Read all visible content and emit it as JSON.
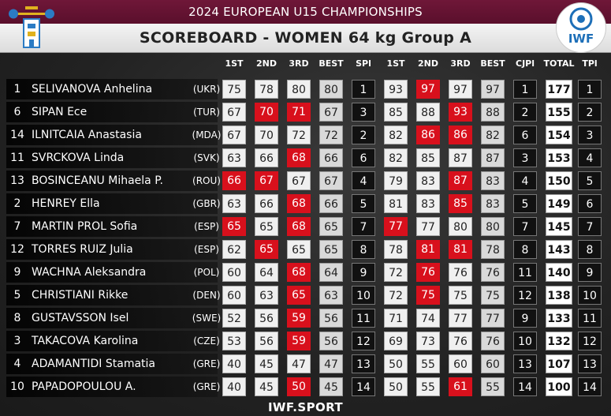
{
  "header": {
    "championship": "2024 EUROPEAN U15 CHAMPIONSHIPS",
    "title": "SCOREBOARD - WOMEN 64 kg Group A",
    "federation_logo_text": "IWF"
  },
  "columns": [
    "1ST",
    "2ND",
    "3RD",
    "BEST",
    "SPl",
    "1ST",
    "2ND",
    "3RD",
    "BEST",
    "CJPl",
    "TOTAL",
    "TPl"
  ],
  "athletes": [
    {
      "lot": "1",
      "name": "SELIVANOVA Anhelina",
      "nation": "(UKR)",
      "sn": [
        [
          "75",
          "g"
        ],
        [
          "78",
          "g"
        ],
        [
          "80",
          "g"
        ]
      ],
      "sn_best": "80",
      "sn_pl": "1",
      "cj": [
        [
          "93",
          "g"
        ],
        [
          "97",
          "b"
        ],
        [
          "97",
          "g"
        ]
      ],
      "cj_best": "97",
      "cj_pl": "1",
      "total": "177",
      "t_pl": "1"
    },
    {
      "lot": "6",
      "name": "SIPAN Ece",
      "nation": "(TUR)",
      "sn": [
        [
          "67",
          "g"
        ],
        [
          "70",
          "b"
        ],
        [
          "71",
          "b"
        ]
      ],
      "sn_best": "67",
      "sn_pl": "3",
      "cj": [
        [
          "85",
          "g"
        ],
        [
          "88",
          "g"
        ],
        [
          "93",
          "b"
        ]
      ],
      "cj_best": "88",
      "cj_pl": "2",
      "total": "155",
      "t_pl": "2"
    },
    {
      "lot": "14",
      "name": "ILNITCAIA Anastasia",
      "nation": "(MDA)",
      "sn": [
        [
          "67",
          "g"
        ],
        [
          "70",
          "g"
        ],
        [
          "72",
          "g"
        ]
      ],
      "sn_best": "72",
      "sn_pl": "2",
      "cj": [
        [
          "82",
          "g"
        ],
        [
          "86",
          "b"
        ],
        [
          "86",
          "b"
        ]
      ],
      "cj_best": "82",
      "cj_pl": "6",
      "total": "154",
      "t_pl": "3"
    },
    {
      "lot": "11",
      "name": "SVRCKOVA Linda",
      "nation": "(SVK)",
      "sn": [
        [
          "63",
          "g"
        ],
        [
          "66",
          "g"
        ],
        [
          "68",
          "b"
        ]
      ],
      "sn_best": "66",
      "sn_pl": "6",
      "cj": [
        [
          "82",
          "g"
        ],
        [
          "85",
          "g"
        ],
        [
          "87",
          "g"
        ]
      ],
      "cj_best": "87",
      "cj_pl": "3",
      "total": "153",
      "t_pl": "4"
    },
    {
      "lot": "13",
      "name": "BOSINCEANU Mihaela P.",
      "nation": "(ROU)",
      "sn": [
        [
          "66",
          "b"
        ],
        [
          "67",
          "b"
        ],
        [
          "67",
          "g"
        ]
      ],
      "sn_best": "67",
      "sn_pl": "4",
      "cj": [
        [
          "79",
          "g"
        ],
        [
          "83",
          "g"
        ],
        [
          "87",
          "b"
        ]
      ],
      "cj_best": "83",
      "cj_pl": "4",
      "total": "150",
      "t_pl": "5"
    },
    {
      "lot": "2",
      "name": "HENREY Ella",
      "nation": "(GBR)",
      "sn": [
        [
          "63",
          "g"
        ],
        [
          "66",
          "g"
        ],
        [
          "68",
          "b"
        ]
      ],
      "sn_best": "66",
      "sn_pl": "5",
      "cj": [
        [
          "81",
          "g"
        ],
        [
          "83",
          "g"
        ],
        [
          "85",
          "b"
        ]
      ],
      "cj_best": "83",
      "cj_pl": "5",
      "total": "149",
      "t_pl": "6"
    },
    {
      "lot": "7",
      "name": "MARTIN PROL Sofia",
      "nation": "(ESP)",
      "sn": [
        [
          "65",
          "b"
        ],
        [
          "65",
          "g"
        ],
        [
          "68",
          "b"
        ]
      ],
      "sn_best": "65",
      "sn_pl": "7",
      "cj": [
        [
          "77",
          "b"
        ],
        [
          "77",
          "g"
        ],
        [
          "80",
          "g"
        ]
      ],
      "cj_best": "80",
      "cj_pl": "7",
      "total": "145",
      "t_pl": "7"
    },
    {
      "lot": "12",
      "name": "TORRES RUIZ Julia",
      "nation": "(ESP)",
      "sn": [
        [
          "62",
          "g"
        ],
        [
          "65",
          "b"
        ],
        [
          "65",
          "g"
        ]
      ],
      "sn_best": "65",
      "sn_pl": "8",
      "cj": [
        [
          "78",
          "g"
        ],
        [
          "81",
          "b"
        ],
        [
          "81",
          "b"
        ]
      ],
      "cj_best": "78",
      "cj_pl": "8",
      "total": "143",
      "t_pl": "8"
    },
    {
      "lot": "9",
      "name": "WACHNA Aleksandra",
      "nation": "(POL)",
      "sn": [
        [
          "60",
          "g"
        ],
        [
          "64",
          "g"
        ],
        [
          "68",
          "b"
        ]
      ],
      "sn_best": "64",
      "sn_pl": "9",
      "cj": [
        [
          "72",
          "g"
        ],
        [
          "76",
          "b"
        ],
        [
          "76",
          "g"
        ]
      ],
      "cj_best": "76",
      "cj_pl": "11",
      "total": "140",
      "t_pl": "9"
    },
    {
      "lot": "5",
      "name": "CHRISTIANI Rikke",
      "nation": "(DEN)",
      "sn": [
        [
          "60",
          "g"
        ],
        [
          "63",
          "g"
        ],
        [
          "65",
          "b"
        ]
      ],
      "sn_best": "63",
      "sn_pl": "10",
      "cj": [
        [
          "72",
          "g"
        ],
        [
          "75",
          "b"
        ],
        [
          "75",
          "g"
        ]
      ],
      "cj_best": "75",
      "cj_pl": "12",
      "total": "138",
      "t_pl": "10"
    },
    {
      "lot": "8",
      "name": "GUSTAVSSON Isel",
      "nation": "(SWE)",
      "sn": [
        [
          "52",
          "g"
        ],
        [
          "56",
          "g"
        ],
        [
          "59",
          "b"
        ]
      ],
      "sn_best": "56",
      "sn_pl": "11",
      "cj": [
        [
          "71",
          "g"
        ],
        [
          "74",
          "g"
        ],
        [
          "77",
          "g"
        ]
      ],
      "cj_best": "77",
      "cj_pl": "9",
      "total": "133",
      "t_pl": "11"
    },
    {
      "lot": "3",
      "name": "TAKACOVA Karolina",
      "nation": "(CZE)",
      "sn": [
        [
          "53",
          "g"
        ],
        [
          "56",
          "g"
        ],
        [
          "59",
          "b"
        ]
      ],
      "sn_best": "56",
      "sn_pl": "12",
      "cj": [
        [
          "69",
          "g"
        ],
        [
          "73",
          "g"
        ],
        [
          "76",
          "g"
        ]
      ],
      "cj_best": "76",
      "cj_pl": "10",
      "total": "132",
      "t_pl": "12"
    },
    {
      "lot": "4",
      "name": "ADAMANTIDI Stamatia",
      "nation": "(GRE)",
      "sn": [
        [
          "40",
          "g"
        ],
        [
          "45",
          "g"
        ],
        [
          "47",
          "g"
        ]
      ],
      "sn_best": "47",
      "sn_pl": "13",
      "cj": [
        [
          "50",
          "g"
        ],
        [
          "55",
          "g"
        ],
        [
          "60",
          "g"
        ]
      ],
      "cj_best": "60",
      "cj_pl": "13",
      "total": "107",
      "t_pl": "13"
    },
    {
      "lot": "10",
      "name": "PAPADOPOULOU A.",
      "nation": "(GRE)",
      "sn": [
        [
          "40",
          "g"
        ],
        [
          "45",
          "g"
        ],
        [
          "50",
          "b"
        ]
      ],
      "sn_best": "45",
      "sn_pl": "14",
      "cj": [
        [
          "50",
          "g"
        ],
        [
          "55",
          "g"
        ],
        [
          "61",
          "b"
        ]
      ],
      "cj_best": "55",
      "cj_pl": "14",
      "total": "100",
      "t_pl": "14"
    }
  ],
  "footer": {
    "text": "IWF.SPORT"
  },
  "colors": {
    "good": "#f0f0f0",
    "bad": "#d8101c",
    "topbar": "#6f1738"
  }
}
